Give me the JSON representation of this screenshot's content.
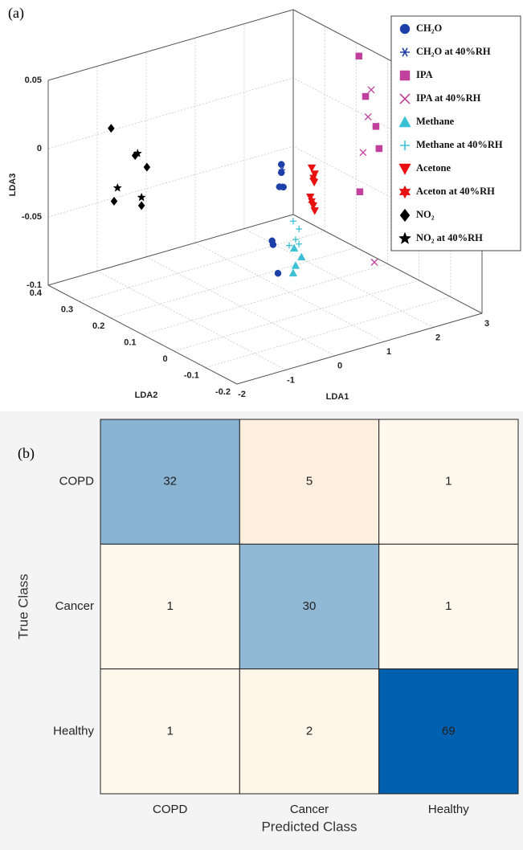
{
  "chart_data": [
    {
      "type": "scatter3d",
      "panel_label": "(a)",
      "xlabel": "LDA1",
      "ylabel": "LDA2",
      "zlabel": "LDA3",
      "xlim": [
        -2,
        3
      ],
      "xticks": [
        -2,
        -1,
        0,
        1,
        2,
        3
      ],
      "ylim": [
        -0.2,
        0.4
      ],
      "yticks": [
        -0.2,
        -0.1,
        0,
        0.1,
        0.2,
        0.3,
        0.4
      ],
      "zlim": [
        -0.1,
        0.05
      ],
      "zticks": [
        -0.1,
        -0.05,
        0,
        0.05
      ],
      "grid": true,
      "legend": "upper right",
      "series": [
        {
          "name": "CH₂O",
          "color": "#1f3fa8",
          "marker": "circle",
          "x": [
            0.19,
            0.19,
            0.15,
            0.23,
            0.0,
            0.02,
            0.12
          ],
          "y": [
            0,
            0,
            0,
            0,
            0,
            0,
            0
          ],
          "z": [
            0.014,
            0.008,
            -0.002,
            -0.003,
            -0.04,
            -0.043,
            -0.065
          ]
        },
        {
          "name": "CH₂O at 40%RH",
          "color": "#1f3fa8",
          "marker": "asterisk",
          "x": [
            0.2,
            0.18
          ],
          "y": [
            0,
            0
          ],
          "z": [
            0.01,
            -0.002
          ]
        },
        {
          "name": "IPA",
          "color": "#c0409c",
          "marker": "square",
          "x": [
            2.8,
            2.8,
            2.8,
            2.8,
            2.8
          ],
          "y": [
            0.16,
            0.139,
            0.106,
            0.096,
            0.157
          ],
          "z": [
            0.047,
            0.02,
            0.002,
            -0.013,
            -0.052
          ]
        },
        {
          "name": "IPA at 40%RH",
          "color": "#c0409c",
          "marker": "x",
          "x": [
            2.8,
            2.8,
            2.8,
            2.8
          ],
          "y": [
            0.121,
            0.131,
            0.147,
            0.111
          ],
          "z": [
            0.027,
            0.006,
            -0.022,
            -0.098
          ]
        },
        {
          "name": "Methane",
          "color": "#3cc0d4",
          "marker": "triangle-up",
          "x": [
            0.45,
            0.6,
            0.48,
            0.43
          ],
          "y": [
            0,
            0,
            0,
            0
          ],
          "z": [
            -0.05,
            -0.058,
            -0.063,
            -0.068
          ]
        },
        {
          "name": "Methane at 40%RH",
          "color": "#3cc0d4",
          "marker": "plus",
          "x": [
            0.43,
            0.55,
            0.48,
            0.35,
            0.55
          ],
          "y": [
            0,
            0,
            0,
            0,
            0
          ],
          "z": [
            -0.03,
            -0.037,
            -0.044,
            -0.047,
            -0.048
          ]
        },
        {
          "name": "Acetone",
          "color": "#e81010",
          "marker": "triangle-down",
          "x": [
            0.81,
            0.87,
            0.86,
            0.78,
            0.84,
            0.87
          ],
          "y": [
            0,
            0,
            0,
            0,
            0,
            0
          ],
          "z": [
            0.005,
            0,
            -0.006,
            -0.016,
            -0.023,
            -0.027
          ]
        },
        {
          "name": "Aceton at 40%RH",
          "color": "#e81010",
          "marker": "hexagram",
          "x": [
            0.84,
            0.81
          ],
          "y": [
            0,
            0
          ],
          "z": [
            -0.002,
            -0.019
          ]
        },
        {
          "name": "NO₂",
          "color": "#000000",
          "marker": "diamond",
          "x": [
            -2,
            -1.51,
            -1.27,
            -1.94,
            -1.38
          ],
          "y": [
            0.2,
            0.2,
            0.2,
            0.2,
            0.2
          ],
          "z": [
            0.039,
            0.014,
            0.003,
            -0.015,
            -0.024
          ]
        },
        {
          "name": "NO₂ at 40%RH",
          "color": "#000000",
          "marker": "pentagram",
          "x": [
            -1.87,
            -1.38,
            -1.46
          ],
          "y": [
            0.2,
            0.2,
            0.2
          ],
          "z": [
            -0.006,
            -0.018,
            0.015
          ]
        }
      ]
    },
    {
      "type": "confusion_matrix",
      "panel_label": "(b)",
      "xlabel": "Predicted Class",
      "ylabel": "True Class",
      "categories": [
        "COPD",
        "Cancer",
        "Healthy"
      ],
      "values": [
        [
          32,
          5,
          1
        ],
        [
          1,
          30,
          1
        ],
        [
          1,
          2,
          69
        ]
      ],
      "colors": {
        "low": "#fffbef",
        "diagonal": "#0060b0",
        "off_diagonal": "#d9541a"
      }
    }
  ]
}
